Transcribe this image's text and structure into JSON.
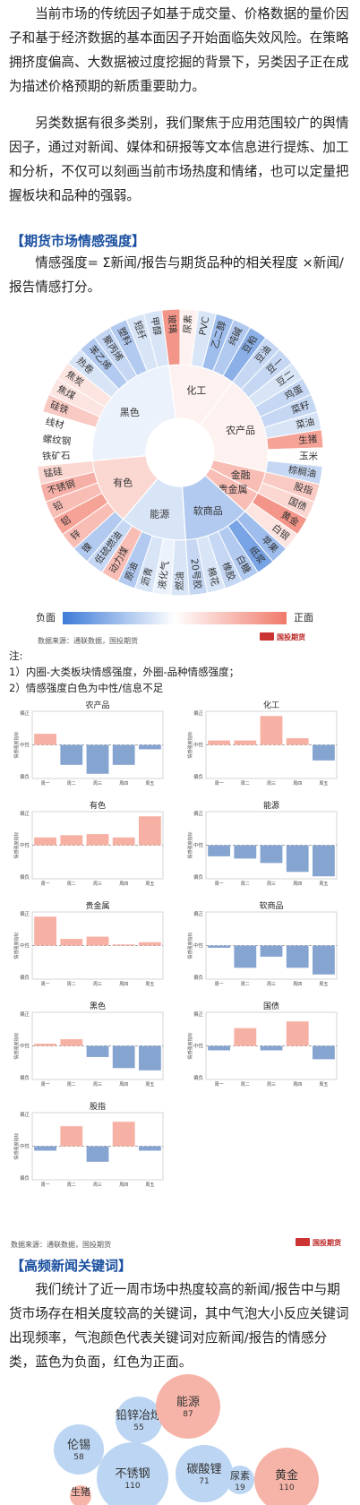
{
  "intro": {
    "p1": "当前市场的传统因子如基于成交量、价格数据的量价因子和基于经济数据的基本面因子开始面临失效风险。在策略拥挤度偏高、大数据被过度挖掘的背景下，另类因子正在成为描述价格预期的新质重要助力。",
    "p2": "另类数据有很多类别，我们聚焦于应用范围较广的舆情因子，通过对新闻、媒体和研报等文本信息进行提炼、加工和分析，不仅可以刻画当前市场热度和情绪，也可以定量把握板块和品种的强弱。"
  },
  "section1": {
    "title": "【期货市场情感强度】",
    "formula": "情感强度= Σ新闻/报告与期货品种的相关程度 ×新闻/报告情感打分。",
    "legend_neg": "负面",
    "legend_pos": "正面",
    "source": "数据来源：通联数据，国投期货",
    "logo": "国投期货",
    "notes_title": "注:",
    "note1": "1）内圈-大类板块情感强度，外圈-品种情感强度；",
    "note2": "2）情感强度白色为中性/信息不足"
  },
  "chart_data": [
    {
      "type": "pie",
      "title": "",
      "inner": [
        {
          "name": "化工",
          "value": 0.1
        },
        {
          "name": "农产品",
          "value": 0.1
        },
        {
          "name": "金融",
          "value": 0.5
        },
        {
          "name": "贵金属",
          "value": 0.5
        },
        {
          "name": "软商品",
          "value": -0.4
        },
        {
          "name": "能源",
          "value": -0.2
        },
        {
          "name": "有色",
          "value": 0.3
        },
        {
          "name": "黑色",
          "value": -0.1
        }
      ],
      "outer": [
        {
          "name": "玻璃",
          "value": 0.8
        },
        {
          "name": "尿素",
          "value": 0.1
        },
        {
          "name": "PVC",
          "value": -0.2
        },
        {
          "name": "乙二醇",
          "value": -0.5
        },
        {
          "name": "纯碱",
          "value": -0.4
        },
        {
          "name": "豆粕",
          "value": -0.6
        },
        {
          "name": "豆油",
          "value": -0.3
        },
        {
          "name": "豆一",
          "value": -0.3
        },
        {
          "name": "豆二",
          "value": -0.2
        },
        {
          "name": "鸡蛋",
          "value": -0.3
        },
        {
          "name": "菜籽",
          "value": -0.3
        },
        {
          "name": "菜油",
          "value": -0.2
        },
        {
          "name": "生猪",
          "value": 0.7
        },
        {
          "name": "玉米",
          "value": 0.0
        },
        {
          "name": "棕榈油",
          "value": -0.3
        },
        {
          "name": "股指",
          "value": 0.4
        },
        {
          "name": "国债",
          "value": 0.3
        },
        {
          "name": "黄金",
          "value": 0.8
        },
        {
          "name": "白银",
          "value": 0.2
        },
        {
          "name": "苹果",
          "value": -0.5
        },
        {
          "name": "纸浆",
          "value": -0.7
        },
        {
          "name": "白糖",
          "value": -0.4
        },
        {
          "name": "橡胶",
          "value": -0.3
        },
        {
          "name": "棉花",
          "value": -0.2
        },
        {
          "name": "20号胶",
          "value": -0.3
        },
        {
          "name": "燃油",
          "value": -0.2
        },
        {
          "name": "液化气",
          "value": -0.1
        },
        {
          "name": "沥青",
          "value": -0.2
        },
        {
          "name": "原油",
          "value": -0.4
        },
        {
          "name": "动力煤",
          "value": 0.5
        },
        {
          "name": "低硫燃油",
          "value": -0.3
        },
        {
          "name": "镍",
          "value": -0.4
        },
        {
          "name": "锌",
          "value": 0.5
        },
        {
          "name": "铝",
          "value": 0.7
        },
        {
          "name": "铅",
          "value": 0.5
        },
        {
          "name": "不锈钢",
          "value": 0.6
        },
        {
          "name": "锰硅",
          "value": 0.3
        },
        {
          "name": "铁矿石",
          "value": 0.0
        },
        {
          "name": "螺纹钢",
          "value": 0.0
        },
        {
          "name": "线材",
          "value": 0.0
        },
        {
          "name": "硅铁",
          "value": 0.4
        },
        {
          "name": "焦煤",
          "value": 0.2
        },
        {
          "name": "焦炭",
          "value": 0.2
        },
        {
          "name": "热卷",
          "value": -0.2
        },
        {
          "name": "苯乙烯",
          "value": -0.4
        },
        {
          "name": "聚丙烯",
          "value": -0.3
        },
        {
          "name": "塑料",
          "value": -0.4
        },
        {
          "name": "短纤",
          "value": -0.2
        },
        {
          "name": "甲醇",
          "value": -0.2
        }
      ],
      "legend": [
        "负面",
        "正面"
      ]
    },
    {
      "type": "bar",
      "title": "农产品",
      "categories": [
        "周一",
        "周二",
        "周三",
        "周四",
        "周五"
      ],
      "values": [
        0.5,
        -0.9,
        -1.3,
        -0.9,
        -0.2
      ],
      "ylabel": "情感强度指标",
      "ytick_labels": [
        "偏正",
        "中性",
        "偏负"
      ]
    },
    {
      "type": "bar",
      "title": "化工",
      "categories": [
        "周一",
        "周二",
        "周三",
        "周四",
        "周五"
      ],
      "values": [
        0.2,
        0.2,
        1.3,
        0.3,
        -0.7
      ],
      "ylabel": "情感强度指标",
      "ytick_labels": [
        "偏正",
        "中性",
        "偏负"
      ]
    },
    {
      "type": "bar",
      "title": "有色",
      "categories": [
        "周一",
        "周二",
        "周三",
        "周四",
        "周五"
      ],
      "values": [
        0.35,
        0.45,
        0.5,
        0.35,
        1.3
      ],
      "ylabel": "情感强度指标",
      "ytick_labels": [
        "偏正",
        "中性",
        "偏负"
      ]
    },
    {
      "type": "bar",
      "title": "能源",
      "categories": [
        "周一",
        "周二",
        "周三",
        "周四",
        "周五"
      ],
      "values": [
        -0.5,
        -0.6,
        -0.8,
        -1.2,
        -1.4
      ],
      "ylabel": "情感强度指标",
      "ytick_labels": [
        "偏正",
        "中性",
        "偏负"
      ]
    },
    {
      "type": "bar",
      "title": "贵金属",
      "categories": [
        "周一",
        "周二",
        "周三",
        "周四",
        "周五"
      ],
      "values": [
        1.3,
        0.3,
        0.4,
        0.05,
        0.15
      ],
      "ylabel": "情感强度指标",
      "ytick_labels": [
        "偏正",
        "中性",
        "偏负"
      ]
    },
    {
      "type": "bar",
      "title": "软商品",
      "categories": [
        "周一",
        "周二",
        "周三",
        "周四",
        "周五"
      ],
      "values": [
        -0.1,
        -1.0,
        -0.5,
        -1.0,
        -1.3
      ],
      "ylabel": "情感强度指标",
      "ytick_labels": [
        "偏正",
        "中性",
        "偏负"
      ]
    },
    {
      "type": "bar",
      "title": "黑色",
      "categories": [
        "周一",
        "周二",
        "周三",
        "周四",
        "周五"
      ],
      "values": [
        0.1,
        0.3,
        -0.5,
        -1.0,
        -1.1
      ],
      "ylabel": "情感强度指标",
      "ytick_labels": [
        "偏正",
        "中性",
        "偏负"
      ]
    },
    {
      "type": "bar",
      "title": "国债",
      "categories": [
        "周一",
        "周二",
        "周三",
        "周四",
        "周五"
      ],
      "values": [
        -0.2,
        0.8,
        -0.2,
        1.1,
        -0.6
      ],
      "ylabel": "情感强度指标",
      "ytick_labels": [
        "偏正",
        "中性",
        "偏负"
      ]
    },
    {
      "type": "bar",
      "title": "股指",
      "categories": [
        "周一",
        "周二",
        "周三",
        "周四",
        "周五"
      ],
      "values": [
        -0.2,
        0.9,
        -0.7,
        1.1,
        -0.2
      ],
      "ylabel": "情感强度指标",
      "ytick_labels": [
        "偏正",
        "中性",
        "偏负"
      ]
    }
  ],
  "bar_footer": {
    "source": "数据来源：通联数据，国投期货",
    "logo": "国投期货"
  },
  "section2": {
    "title": "【高频新闻关键词】",
    "text": "我们统计了近一周市场中热度较高的新闻/报告中与期货市场存在相关度较高的关键词，其中气泡大小反应关键词出现频率，气泡颜色代表关键词对应新闻/报告的情感分类，蓝色为负面，红色为正面。"
  },
  "bubbles": [
    {
      "word": "铅锌冶炼",
      "count": "55",
      "sentiment": "negative"
    },
    {
      "word": "能源",
      "count": "87",
      "sentiment": "positive"
    },
    {
      "word": "伦锡",
      "count": "58",
      "sentiment": "negative"
    },
    {
      "word": "不锈钢",
      "count": "110",
      "sentiment": "negative"
    },
    {
      "word": "碳酸锂",
      "count": "71",
      "sentiment": "negative"
    },
    {
      "word": "尿素",
      "count": "19",
      "sentiment": "negative"
    },
    {
      "word": "黄金",
      "count": "110",
      "sentiment": "positive"
    },
    {
      "word": "生猪",
      "count": "",
      "sentiment": "positive"
    }
  ],
  "colors": {
    "negative": "#4f86d0",
    "positive": "#f08070",
    "heading": "#1a4fa0"
  }
}
